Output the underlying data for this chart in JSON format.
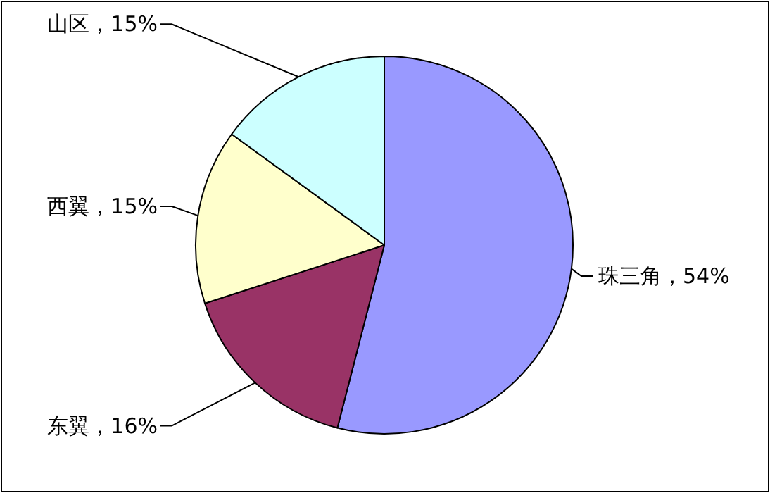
{
  "chart_data": {
    "type": "pie",
    "categories": [
      "珠三角",
      "东翼",
      "西翼",
      "山区"
    ],
    "values": [
      54,
      16,
      15,
      15
    ],
    "value_labels": [
      "54%",
      "16%",
      "15%",
      "15%"
    ],
    "colors": [
      "#9999ff",
      "#993366",
      "#ffffcc",
      "#ccffff"
    ],
    "legend": false
  }
}
